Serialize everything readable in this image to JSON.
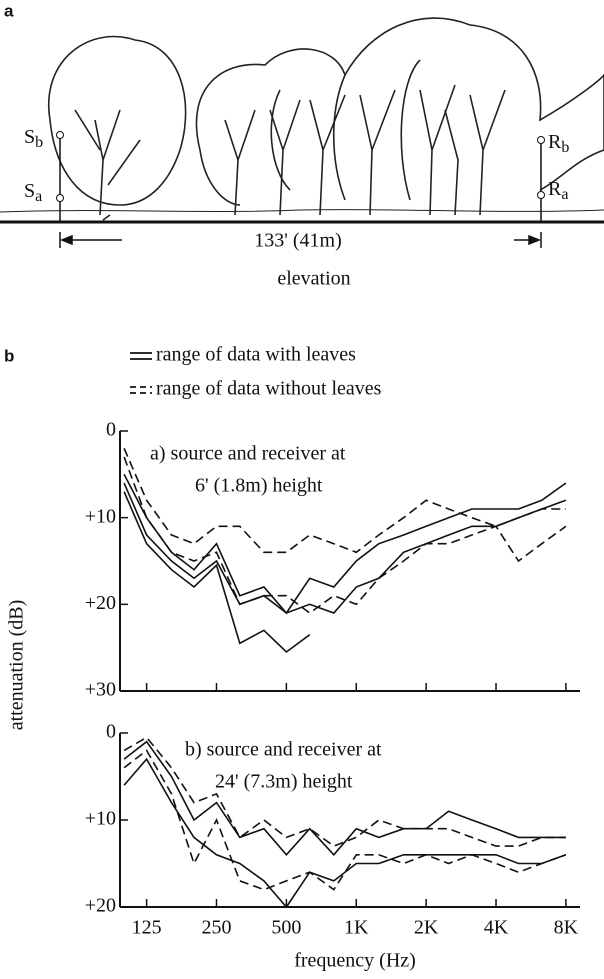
{
  "panel_a": {
    "label": "a",
    "source_b": {
      "main": "S",
      "sub": "b"
    },
    "source_a": {
      "main": "S",
      "sub": "a"
    },
    "receiver_b": {
      "main": "R",
      "sub": "b"
    },
    "receiver_a": {
      "main": "R",
      "sub": "a"
    },
    "distance": "133' (41m)",
    "caption": "elevation"
  },
  "panel_b_label": "b",
  "legend": [
    {
      "label": "range of data with leaves",
      "dash": false
    },
    {
      "label": "range of data without leaves",
      "dash": true
    }
  ],
  "chart_data": [
    {
      "type": "line",
      "title": [
        "a)  source and receiver at",
        "6' (1.8m) height"
      ],
      "y_label": "attenuation (dB)",
      "x_scale": "log",
      "xlim": [
        96,
        9200
      ],
      "x": [
        100,
        125,
        160,
        200,
        250,
        315,
        400,
        500,
        630,
        800,
        1000,
        1250,
        1600,
        2000,
        2500,
        3150,
        4000,
        5000,
        6300,
        8000
      ],
      "xticks": [
        125,
        250,
        500,
        {
          "value": 1000,
          "label": "1K"
        },
        {
          "value": 2000,
          "label": "2K"
        },
        {
          "value": 4000,
          "label": "4K"
        },
        {
          "value": 8000,
          "label": "8K"
        }
      ],
      "ylim": [
        0,
        30
      ],
      "y_inverted": true,
      "yticks": [
        0,
        {
          "value": 10,
          "label": "+10"
        },
        {
          "value": 20,
          "label": "+20"
        },
        {
          "value": 30,
          "label": "+30"
        }
      ],
      "series": [
        {
          "dash": false,
          "color": "#111",
          "values": [
            5,
            10,
            14,
            16,
            13,
            19,
            18,
            21,
            17,
            18,
            15,
            13,
            12,
            11,
            10,
            9,
            9,
            9,
            8,
            6
          ]
        },
        {
          "dash": false,
          "color": "#111",
          "values": [
            7,
            13,
            16,
            18,
            15.5,
            24.5,
            23,
            25.5,
            23.5,
            null,
            null,
            null,
            null,
            null,
            null,
            null,
            null,
            null,
            null,
            null
          ]
        },
        {
          "dash": false,
          "color": "#111",
          "values": [
            6,
            12,
            15,
            17,
            15,
            20,
            19,
            21,
            20,
            21,
            18,
            17,
            14,
            13,
            12,
            11,
            11,
            10,
            9,
            8
          ]
        },
        {
          "dash": true,
          "color": "#111",
          "values": [
            2,
            8,
            12,
            13,
            11,
            11,
            14,
            14,
            12,
            13,
            14,
            12,
            10,
            8,
            9,
            10,
            11,
            10,
            9,
            9
          ]
        },
        {
          "dash": true,
          "color": "#111",
          "values": [
            3,
            10,
            14,
            15,
            14,
            20,
            19,
            19,
            21,
            19,
            20,
            17,
            15,
            13,
            13,
            12,
            11,
            15,
            13,
            11
          ]
        }
      ]
    },
    {
      "type": "line",
      "title": [
        "b)  source and receiver at",
        "24' (7.3m) height"
      ],
      "x_label": "frequency (Hz)",
      "x_scale": "log",
      "xlim": [
        96,
        9200
      ],
      "x": [
        100,
        125,
        160,
        200,
        250,
        315,
        400,
        500,
        630,
        800,
        1000,
        1250,
        1600,
        2000,
        2500,
        3150,
        4000,
        5000,
        6300,
        8000
      ],
      "xticks": [
        125,
        250,
        500,
        {
          "value": 1000,
          "label": "1K"
        },
        {
          "value": 2000,
          "label": "2K"
        },
        {
          "value": 4000,
          "label": "4K"
        },
        {
          "value": 8000,
          "label": "8K"
        }
      ],
      "ylim": [
        0,
        20
      ],
      "y_inverted": true,
      "yticks": [
        0,
        {
          "value": 10,
          "label": "+10"
        },
        {
          "value": 20,
          "label": "+20"
        }
      ],
      "series": [
        {
          "dash": false,
          "color": "#111",
          "values": [
            3,
            1,
            5,
            10,
            8,
            12,
            11,
            14,
            11,
            14,
            11,
            12,
            11,
            11,
            9,
            10,
            11,
            12,
            12,
            12
          ]
        },
        {
          "dash": false,
          "color": "#111",
          "values": [
            6,
            3,
            8,
            12,
            14,
            15,
            17,
            20,
            16,
            17,
            15,
            15,
            14,
            14,
            14,
            14,
            14,
            15,
            15,
            14
          ]
        },
        {
          "dash": true,
          "color": "#111",
          "values": [
            2,
            0.5,
            4,
            8,
            7,
            12,
            10,
            12,
            11,
            13,
            12,
            10,
            11,
            11,
            11,
            12,
            13,
            13,
            12,
            12
          ]
        },
        {
          "dash": true,
          "color": "#111",
          "values": [
            4,
            2,
            7,
            15,
            10,
            17,
            18,
            17,
            16,
            18,
            14,
            14,
            15,
            14,
            15,
            14,
            15,
            16,
            15,
            14
          ]
        }
      ]
    }
  ]
}
